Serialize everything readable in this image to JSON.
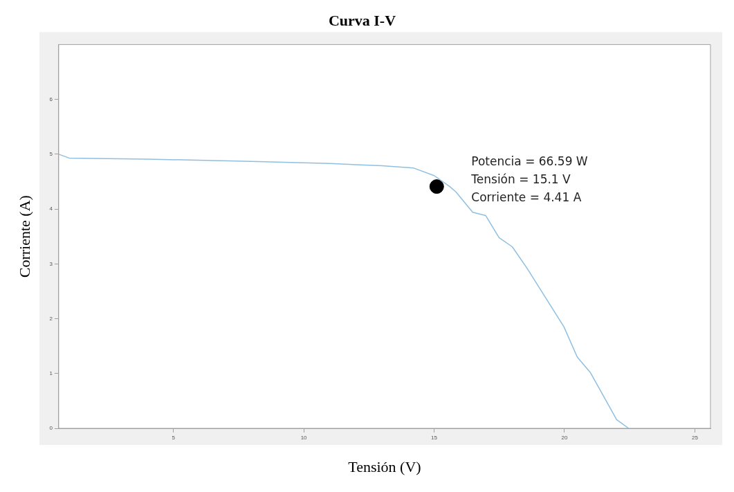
{
  "chart_data": {
    "type": "line",
    "title": "Curva I-V",
    "xlabel": "Tensión (V)",
    "ylabel": "Corriente (A)",
    "xlim": [
      0.6,
      25.6
    ],
    "xticks": [
      5,
      10,
      15,
      20,
      25
    ],
    "ylim": [
      0,
      7
    ],
    "yticks": [
      0,
      1,
      2,
      3,
      4,
      5,
      6
    ],
    "grid": false,
    "legend": false,
    "series": [
      {
        "color": "#8fbfe0",
        "marker": "none",
        "x": [
          0.6,
          1.0,
          4,
          8,
          11,
          13,
          14.2,
          15.0,
          15.6,
          15.84,
          16.48,
          16.98,
          17.49,
          18.0,
          18.55,
          19.98,
          20.49,
          20.99,
          22.0,
          22.46
        ],
        "values": [
          5.0,
          4.93,
          4.91,
          4.87,
          4.83,
          4.79,
          4.75,
          4.61,
          4.41,
          4.31,
          3.94,
          3.88,
          3.48,
          3.31,
          2.93,
          1.85,
          1.3,
          1.02,
          0.16,
          0
        ]
      },
      {
        "type": "scatter",
        "color": "#000000",
        "marker": "circle",
        "x": [
          15.1
        ],
        "values": [
          4.41
        ]
      }
    ],
    "annotations": [
      "Potencia = 66.59 W",
      "Tensión = 15.1 V",
      "Corriente = 4.41 A"
    ]
  }
}
